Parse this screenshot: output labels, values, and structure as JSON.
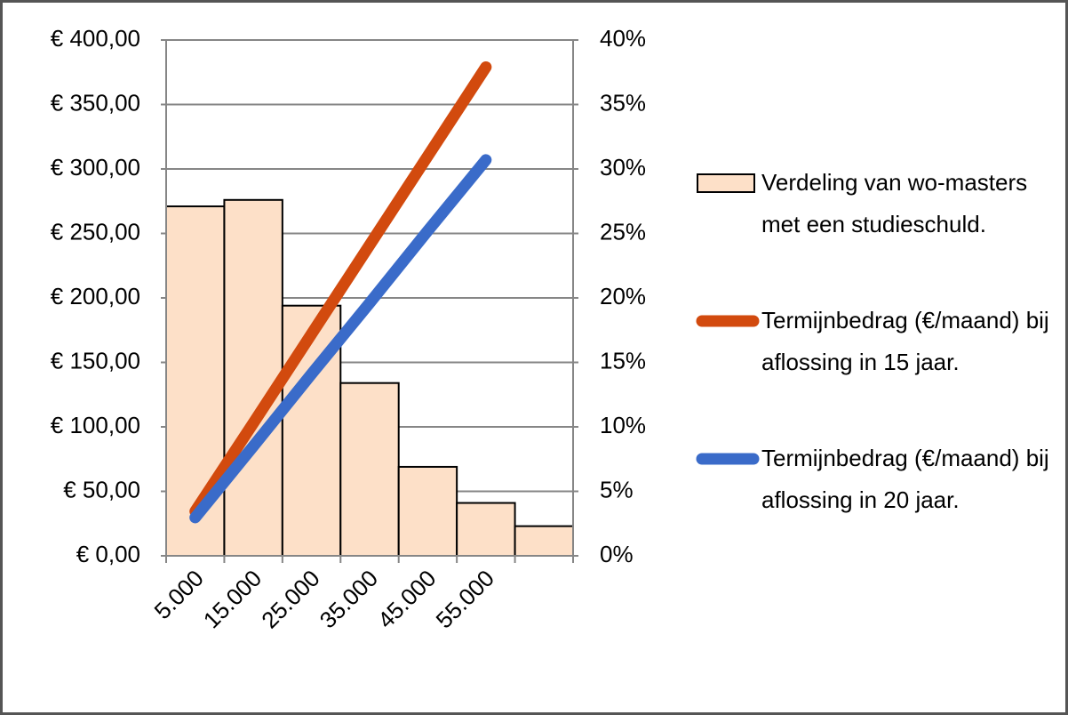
{
  "chart_data": {
    "type": "bar",
    "categories": [
      "5.000",
      "15.000",
      "25.000",
      "35.000",
      "45.000",
      "55.000",
      null
    ],
    "series": [
      {
        "name": "Verdeling van wo-masters met een studieschuld.",
        "type": "bar",
        "axis": "y2",
        "color": "#fde0c8",
        "values": [
          27.1,
          27.6,
          19.4,
          13.4,
          6.9,
          4.1,
          2.3
        ]
      },
      {
        "name": "Termijnbedrag (€/maand) bij aflossing in 15 jaar.",
        "type": "line",
        "axis": "y",
        "color": "#d24a0e",
        "values": [
          34.5,
          103,
          172,
          241,
          310,
          379,
          null
        ]
      },
      {
        "name": "Termijnbedrag (€/maand) bij aflossing in 20 jaar.",
        "type": "line",
        "axis": "y",
        "color": "#3a6bc9",
        "values": [
          29.7,
          85,
          141,
          196,
          252,
          307,
          null
        ]
      }
    ],
    "ylim": [
      0,
      400
    ],
    "yticks": [
      {
        "value": 0,
        "label": "€ 0,00"
      },
      {
        "value": 50,
        "label": "€ 50,00"
      },
      {
        "value": 100,
        "label": "€ 100,00"
      },
      {
        "value": 150,
        "label": "€ 150,00"
      },
      {
        "value": 200,
        "label": "€ 200,00"
      },
      {
        "value": 250,
        "label": "€ 250,00"
      },
      {
        "value": 300,
        "label": "€ 300,00"
      },
      {
        "value": 350,
        "label": "€ 350,00"
      },
      {
        "value": 400,
        "label": "€ 400,00"
      }
    ],
    "y2lim": [
      0,
      40
    ],
    "y2ticks": [
      {
        "value": 0,
        "label": "0%"
      },
      {
        "value": 5,
        "label": "5%"
      },
      {
        "value": 10,
        "label": "10%"
      },
      {
        "value": 15,
        "label": "15%"
      },
      {
        "value": 20,
        "label": "20%"
      },
      {
        "value": 25,
        "label": "25%"
      },
      {
        "value": 30,
        "label": "30%"
      },
      {
        "value": 35,
        "label": "35%"
      },
      {
        "value": 40,
        "label": "40%"
      }
    ],
    "grid": true,
    "legend": "right"
  }
}
